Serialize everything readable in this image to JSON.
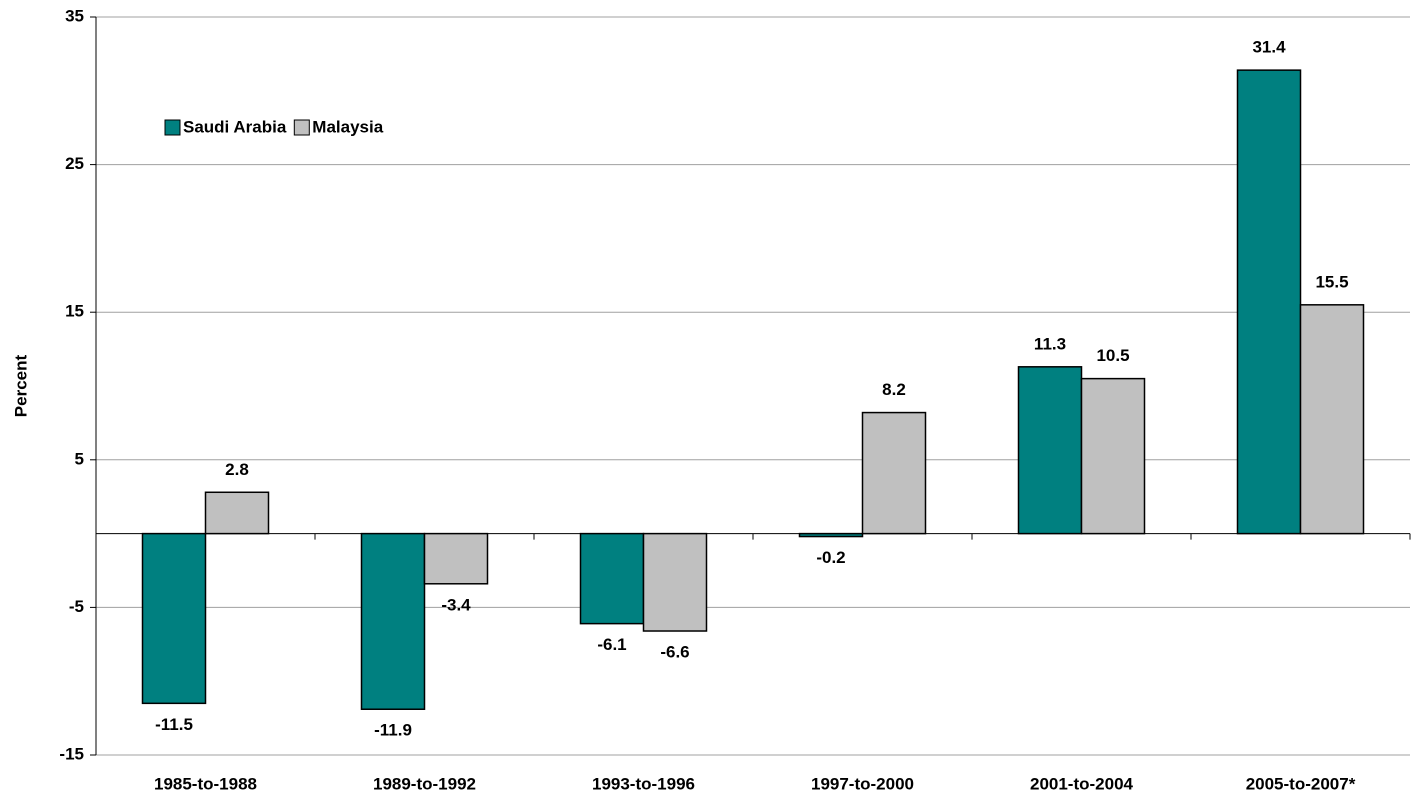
{
  "chart_data": {
    "type": "bar",
    "y_label": "Percent",
    "categories": [
      "1985-to-1988",
      "1989-to-1992",
      "1993-to-1996",
      "1997-to-2000",
      "2001-to-2004",
      "2005-to-2007*"
    ],
    "series": [
      {
        "name": "Saudi Arabia",
        "color": "#008080",
        "values": [
          -11.5,
          -11.9,
          -6.1,
          -0.2,
          11.3,
          31.4
        ]
      },
      {
        "name": "Malaysia",
        "color": "#c0c0c0",
        "values": [
          2.8,
          -3.4,
          -6.6,
          8.2,
          10.5,
          15.5
        ]
      }
    ],
    "ylim": [
      -15,
      35
    ],
    "yticks": [
      -15,
      -5,
      5,
      15,
      25,
      35
    ],
    "grid": true
  }
}
